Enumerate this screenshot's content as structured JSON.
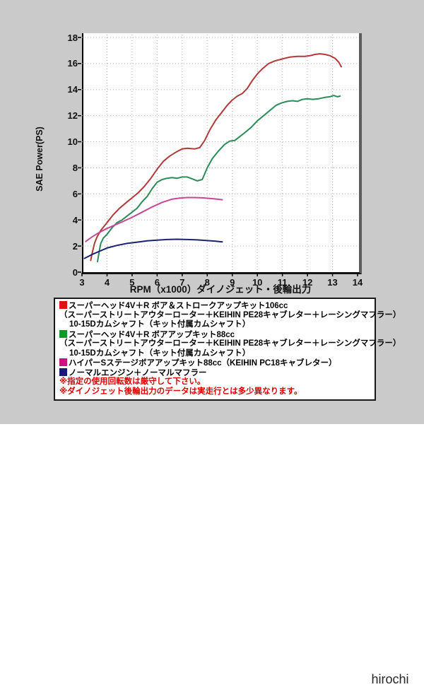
{
  "page": {
    "watermark": "hirochi",
    "background": "#cacaca"
  },
  "chart_data": {
    "type": "line",
    "title": "",
    "xlabel": "RPM（x1000）ダイノジェット・後輪出力",
    "ylabel": "SAE Power(PS)",
    "xlim": [
      3,
      14
    ],
    "ylim": [
      0,
      18
    ],
    "x_ticks": [
      3,
      4,
      5,
      6,
      7,
      8,
      9,
      10,
      11,
      12,
      13,
      14
    ],
    "y_ticks": [
      0,
      2,
      4,
      6,
      8,
      10,
      12,
      14,
      16,
      18
    ],
    "grid": true,
    "grid_color": "#b2b2b2",
    "legend_position": "below-plot",
    "series": [
      {
        "name": "スーパーヘッド4V＋R ボア＆ストロークアップキット106cc",
        "color": "#b13a38",
        "points": [
          [
            3.35,
            0.9
          ],
          [
            3.4,
            1.4
          ],
          [
            3.5,
            2.2
          ],
          [
            3.6,
            2.7
          ],
          [
            3.75,
            3.2
          ],
          [
            4.0,
            3.8
          ],
          [
            4.25,
            4.4
          ],
          [
            4.5,
            4.9
          ],
          [
            4.75,
            5.3
          ],
          [
            5.0,
            5.7
          ],
          [
            5.25,
            6.1
          ],
          [
            5.5,
            6.6
          ],
          [
            5.75,
            7.2
          ],
          [
            6.0,
            7.9
          ],
          [
            6.25,
            8.5
          ],
          [
            6.5,
            8.9
          ],
          [
            6.75,
            9.2
          ],
          [
            7.0,
            9.45
          ],
          [
            7.2,
            9.5
          ],
          [
            7.5,
            9.45
          ],
          [
            7.7,
            9.55
          ],
          [
            7.9,
            10.1
          ],
          [
            8.1,
            10.9
          ],
          [
            8.35,
            11.7
          ],
          [
            8.6,
            12.3
          ],
          [
            8.8,
            12.8
          ],
          [
            9.0,
            13.2
          ],
          [
            9.2,
            13.5
          ],
          [
            9.4,
            13.7
          ],
          [
            9.6,
            14.1
          ],
          [
            9.8,
            14.7
          ],
          [
            10.0,
            15.2
          ],
          [
            10.2,
            15.6
          ],
          [
            10.45,
            16.0
          ],
          [
            10.7,
            16.2
          ],
          [
            11.0,
            16.35
          ],
          [
            11.3,
            16.5
          ],
          [
            11.6,
            16.55
          ],
          [
            11.9,
            16.55
          ],
          [
            12.1,
            16.6
          ],
          [
            12.3,
            16.7
          ],
          [
            12.5,
            16.75
          ],
          [
            12.7,
            16.7
          ],
          [
            12.9,
            16.6
          ],
          [
            13.1,
            16.4
          ],
          [
            13.25,
            16.1
          ],
          [
            13.35,
            15.75
          ]
        ]
      },
      {
        "name": "スーパーヘッド4V＋R ボアアップキット88cc",
        "color": "#2b8c58",
        "points": [
          [
            3.62,
            0.8
          ],
          [
            3.68,
            1.5
          ],
          [
            3.75,
            2.2
          ],
          [
            3.85,
            2.6
          ],
          [
            4.0,
            2.9
          ],
          [
            4.2,
            3.4
          ],
          [
            4.4,
            3.8
          ],
          [
            4.6,
            4.0
          ],
          [
            4.8,
            4.3
          ],
          [
            5.0,
            4.6
          ],
          [
            5.2,
            4.9
          ],
          [
            5.4,
            5.4
          ],
          [
            5.6,
            5.8
          ],
          [
            5.8,
            6.4
          ],
          [
            6.0,
            6.9
          ],
          [
            6.2,
            7.1
          ],
          [
            6.4,
            7.2
          ],
          [
            6.6,
            7.25
          ],
          [
            6.8,
            7.2
          ],
          [
            7.0,
            7.3
          ],
          [
            7.2,
            7.3
          ],
          [
            7.4,
            7.15
          ],
          [
            7.6,
            7.0
          ],
          [
            7.8,
            7.1
          ],
          [
            8.0,
            8.0
          ],
          [
            8.2,
            8.7
          ],
          [
            8.45,
            9.3
          ],
          [
            8.7,
            9.8
          ],
          [
            8.9,
            10.05
          ],
          [
            9.1,
            10.1
          ],
          [
            9.3,
            10.4
          ],
          [
            9.5,
            10.7
          ],
          [
            9.75,
            11.1
          ],
          [
            10.0,
            11.6
          ],
          [
            10.25,
            12.0
          ],
          [
            10.5,
            12.4
          ],
          [
            10.75,
            12.8
          ],
          [
            11.0,
            13.0
          ],
          [
            11.2,
            13.1
          ],
          [
            11.4,
            13.15
          ],
          [
            11.6,
            13.1
          ],
          [
            11.8,
            13.25
          ],
          [
            12.0,
            13.3
          ],
          [
            12.2,
            13.25
          ],
          [
            12.45,
            13.3
          ],
          [
            12.7,
            13.4
          ],
          [
            12.9,
            13.45
          ],
          [
            13.05,
            13.55
          ],
          [
            13.2,
            13.45
          ],
          [
            13.3,
            13.5
          ]
        ]
      },
      {
        "name": "ハイパーSステージボアアップキット88cc（KEIHIN PC18キャブレター）",
        "color": "#c84696",
        "points": [
          [
            3.15,
            2.35
          ],
          [
            3.4,
            2.7
          ],
          [
            3.7,
            3.05
          ],
          [
            4.0,
            3.35
          ],
          [
            4.3,
            3.6
          ],
          [
            4.6,
            3.85
          ],
          [
            5.0,
            4.2
          ],
          [
            5.4,
            4.6
          ],
          [
            5.8,
            5.0
          ],
          [
            6.2,
            5.35
          ],
          [
            6.6,
            5.6
          ],
          [
            6.9,
            5.68
          ],
          [
            7.2,
            5.72
          ],
          [
            7.5,
            5.72
          ],
          [
            7.8,
            5.7
          ],
          [
            8.1,
            5.65
          ],
          [
            8.4,
            5.6
          ],
          [
            8.6,
            5.55
          ]
        ]
      },
      {
        "name": "ノーマルエンジン＋ノーマルマフラー",
        "color": "#19236e",
        "points": [
          [
            3.1,
            1.05
          ],
          [
            3.4,
            1.35
          ],
          [
            3.7,
            1.6
          ],
          [
            4.0,
            1.85
          ],
          [
            4.4,
            2.05
          ],
          [
            4.8,
            2.2
          ],
          [
            5.2,
            2.3
          ],
          [
            5.6,
            2.4
          ],
          [
            6.0,
            2.45
          ],
          [
            6.4,
            2.5
          ],
          [
            6.8,
            2.52
          ],
          [
            7.2,
            2.5
          ],
          [
            7.6,
            2.47
          ],
          [
            8.0,
            2.42
          ],
          [
            8.3,
            2.38
          ],
          [
            8.6,
            2.32
          ]
        ]
      }
    ]
  },
  "legend": {
    "entries": [
      {
        "swatch": "#e01010",
        "text": "スーパーヘッド4V＋R ボア＆ストロークアップキット106cc",
        "color": "#000000",
        "indent": 0
      },
      {
        "swatch": null,
        "text": "（スーパーストリートアウターローター＋KEIHIN PE28キャブレター＋レーシングマフラー）",
        "color": "#000000",
        "indent": 0
      },
      {
        "swatch": null,
        "text": "10-15Dカムシャフト（キット付属カムシャフト）",
        "color": "#000000",
        "indent": 1
      },
      {
        "swatch": "#0a9a2a",
        "text": "スーパーヘッド4V＋R ボアアップキット88cc",
        "color": "#000000",
        "indent": 0
      },
      {
        "swatch": null,
        "text": "（スーパーストリートアウターローター＋KEIHIN PE28キャブレター＋レーシングマフラー）",
        "color": "#000000",
        "indent": 0
      },
      {
        "swatch": null,
        "text": "10-15Dカムシャフト（キット付属カムシャフト）",
        "color": "#000000",
        "indent": 1
      },
      {
        "swatch": "#d01080",
        "text": "ハイパーSステージボアアップキット88cc（KEIHIN PC18キャブレター）",
        "color": "#000000",
        "indent": 0
      },
      {
        "swatch": "#181878",
        "text": "ノーマルエンジン＋ノーマルマフラー",
        "color": "#000000",
        "indent": 0
      },
      {
        "swatch": null,
        "text": "※指定の使用回転数は厳守して下さい。",
        "color": "#dd0000",
        "indent": 0
      },
      {
        "swatch": null,
        "text": "※ダイノジェット後輪出力のデータは実走行とは多少異なります。",
        "color": "#dd0000",
        "indent": 0
      }
    ]
  }
}
